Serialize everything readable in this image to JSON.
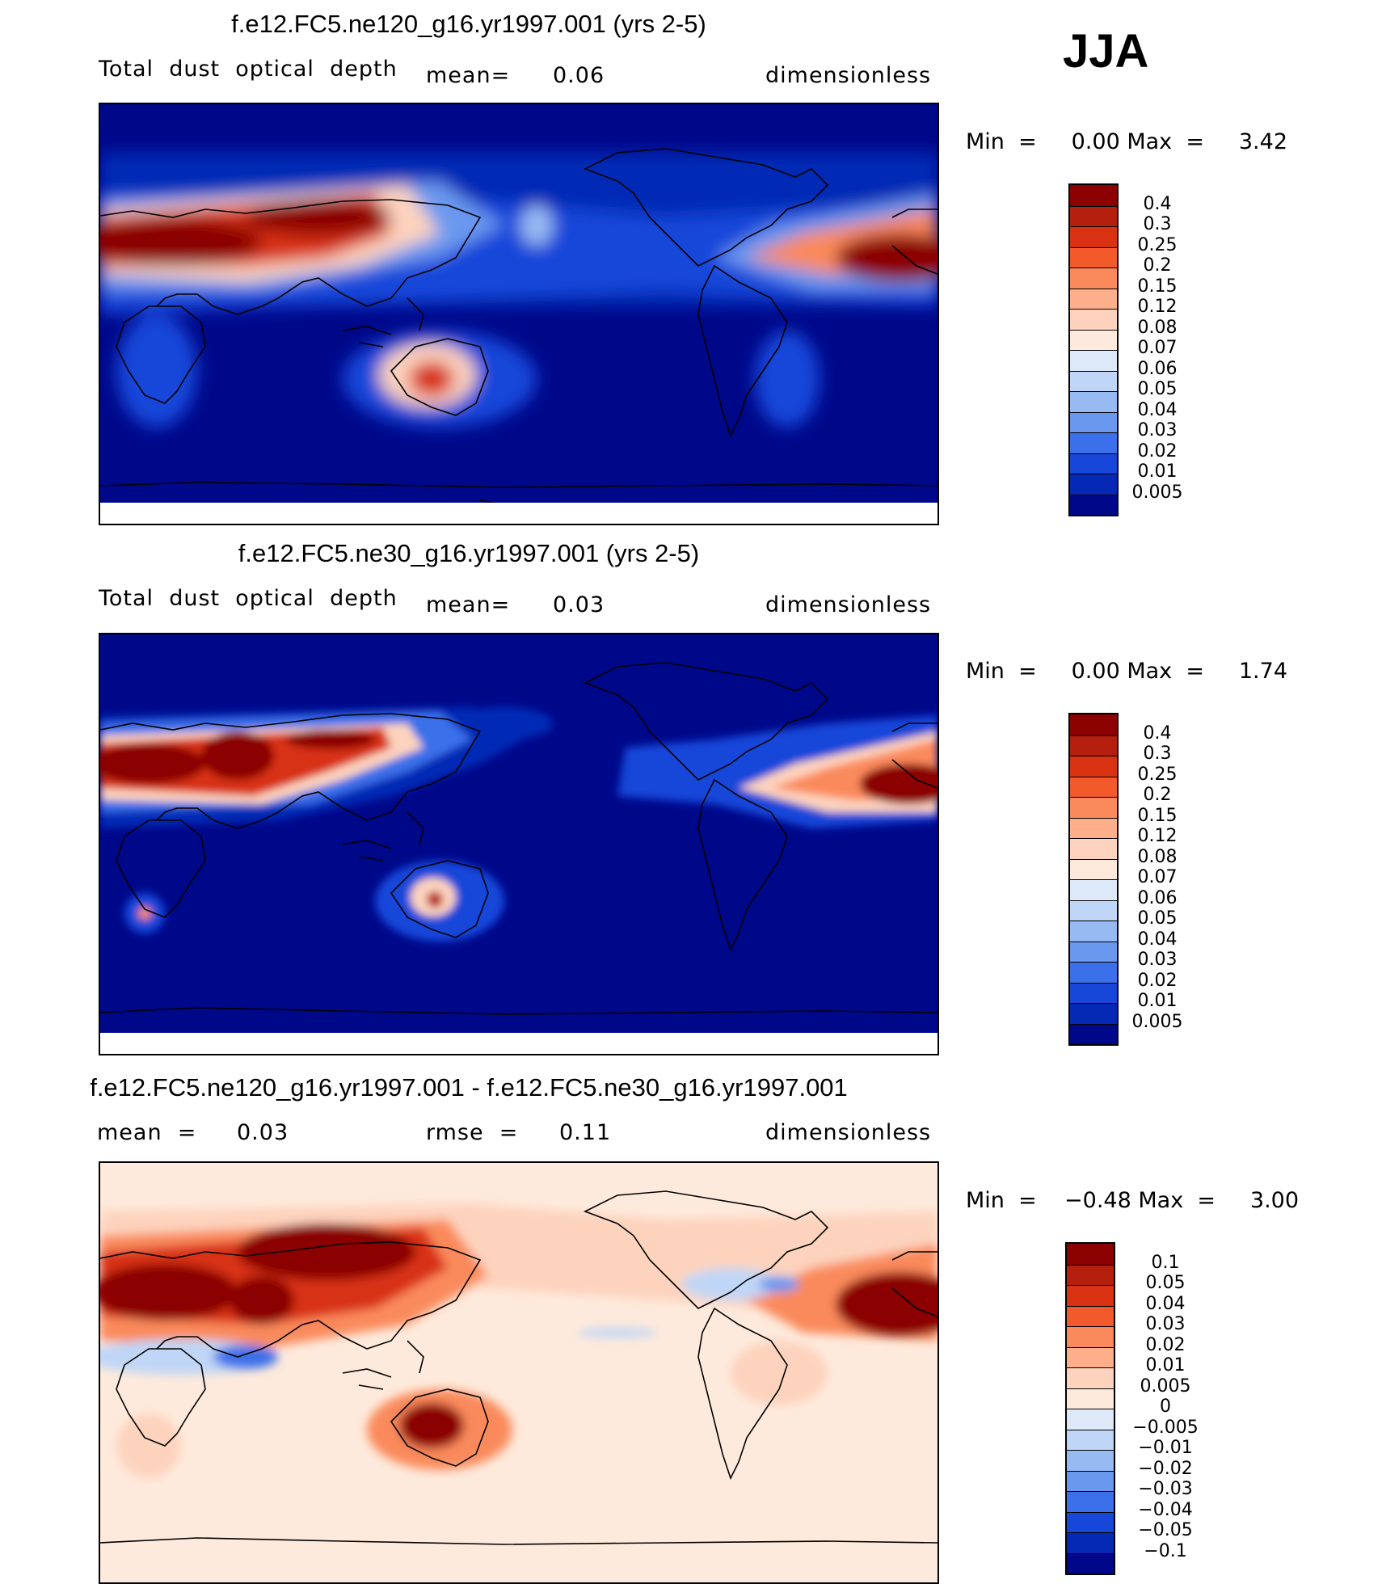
{
  "season": "JJA",
  "panels": [
    {
      "title": "f.e12.FC5.ne120_g16.yr1997.001 (yrs 2-5)",
      "variable": "Total  dust  optical  depth",
      "stat_label": "mean=",
      "stat_value": "0.06",
      "units": "dimensionless",
      "min_label": "Min  =",
      "min_value": "0.00",
      "max_label": "Max  =",
      "max_value": "3.42"
    },
    {
      "title": "f.e12.FC5.ne30_g16.yr1997.001 (yrs 2-5)",
      "variable": "Total  dust  optical  depth",
      "stat_label": "mean=",
      "stat_value": "0.03",
      "units": "dimensionless",
      "min_label": "Min  =",
      "min_value": "0.00",
      "max_label": "Max  =",
      "max_value": "1.74"
    },
    {
      "title": "f.e12.FC5.ne120_g16.yr1997.001 - f.e12.FC5.ne30_g16.yr1997.001",
      "stat_label": "mean  =",
      "stat_value": "0.03",
      "stat2_label": "rmse  =",
      "stat2_value": "0.11",
      "units": "dimensionless",
      "min_label": "Min  =",
      "min_value": "−0.48",
      "max_label": "Max  =",
      "max_value": "3.00"
    }
  ],
  "colorbars": {
    "field": {
      "labels": [
        "0.4",
        "0.3",
        "0.25",
        "0.2",
        "0.15",
        "0.12",
        "0.08",
        "0.07",
        "0.06",
        "0.05",
        "0.04",
        "0.03",
        "0.02",
        "0.01",
        "0.005"
      ],
      "colors": [
        "#8b0000",
        "#b5200e",
        "#d83212",
        "#f25a2c",
        "#fa8a5c",
        "#fdae8a",
        "#fdd3bd",
        "#feeadc",
        "#dde9f8",
        "#c0d6f6",
        "#98baf3",
        "#6a98ef",
        "#3b70ea",
        "#1747d9",
        "#0629b5",
        "#00088a"
      ]
    },
    "diff": {
      "labels": [
        "0.1",
        "0.05",
        "0.04",
        "0.03",
        "0.02",
        "0.01",
        "0.005",
        "0",
        "−0.005",
        "−0.01",
        "−0.02",
        "−0.03",
        "−0.04",
        "−0.05",
        "−0.1"
      ],
      "colors": [
        "#8b0000",
        "#b5200e",
        "#d83212",
        "#f25a2c",
        "#fa8a5c",
        "#fdae8a",
        "#fdd3bd",
        "#feeadc",
        "#dde9f8",
        "#c0d6f6",
        "#98baf3",
        "#6a98ef",
        "#3b70ea",
        "#1747d9",
        "#0629b5",
        "#00088a"
      ]
    }
  }
}
